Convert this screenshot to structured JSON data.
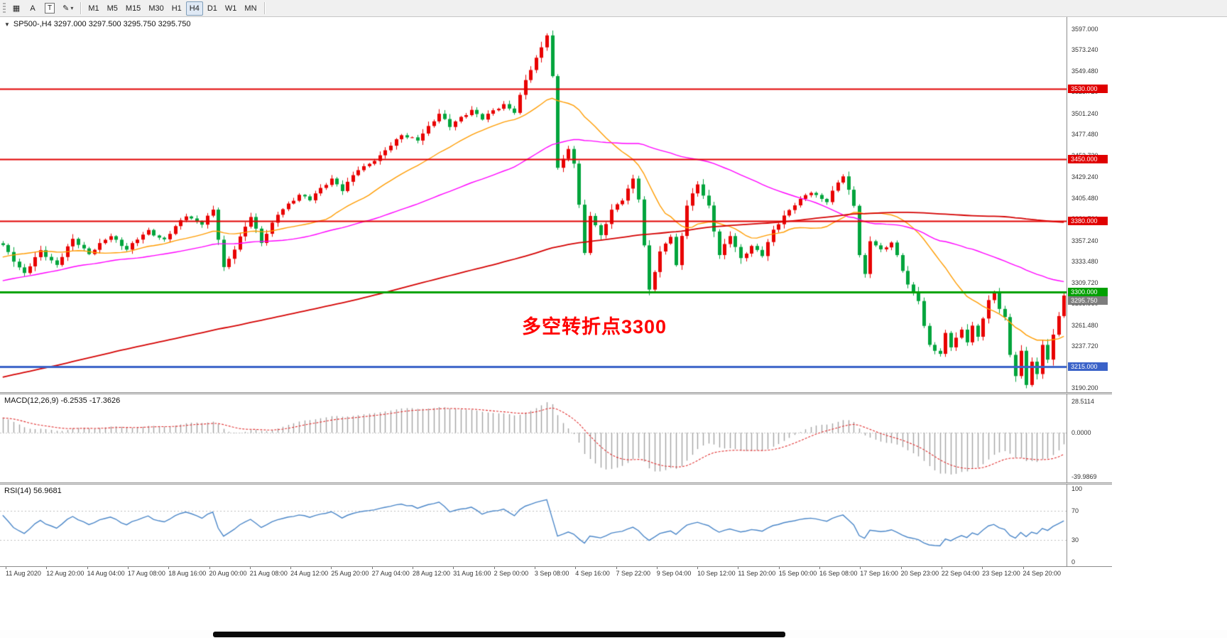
{
  "toolbar": {
    "tools": [
      {
        "name": "chart-grid-icon",
        "glyph": "▦"
      },
      {
        "name": "annotation-text-tool",
        "glyph": "A"
      },
      {
        "name": "text-label-tool",
        "glyph": "T",
        "boxed": true
      },
      {
        "name": "draw-pencil-tool",
        "glyph": "✎",
        "chevron": true
      }
    ],
    "timeframes": [
      {
        "label": "M1",
        "active": false
      },
      {
        "label": "M5",
        "active": false
      },
      {
        "label": "M15",
        "active": false
      },
      {
        "label": "M30",
        "active": false
      },
      {
        "label": "H1",
        "active": false
      },
      {
        "label": "H4",
        "active": true
      },
      {
        "label": "D1",
        "active": false
      },
      {
        "label": "W1",
        "active": false
      },
      {
        "label": "MN",
        "active": false
      }
    ]
  },
  "chart": {
    "symbol_header": "SP500-,H4  3297.000 3297.500 3295.750 3295.750",
    "annotation": {
      "text": "多空转折点3300",
      "color": "#ff0000"
    },
    "price_axis": {
      "ticks": [
        "3597.000",
        "3573.240",
        "3549.480",
        "3525.720",
        "3501.240",
        "3477.480",
        "3453.720",
        "3429.240",
        "3405.480",
        "3381.720",
        "3357.240",
        "3333.480",
        "3309.720",
        "3285.960",
        "3261.480",
        "3237.720",
        "3213.960",
        "3190.200"
      ]
    },
    "hlines": [
      {
        "value": 3530,
        "label": "3530.000",
        "color": "#e00000",
        "width": 2
      },
      {
        "value": 3450,
        "label": "3450.000",
        "color": "#e00000",
        "width": 2
      },
      {
        "value": 3380,
        "label": "3380.000",
        "color": "#e00000",
        "width": 2
      },
      {
        "value": 3300,
        "label": "3300.000",
        "color": "#00a000",
        "width": 3
      },
      {
        "value": 3215,
        "label": "3215.000",
        "color": "#3a62c8",
        "width": 3
      }
    ],
    "current_price": {
      "label": "3295.750",
      "value": 3295.75,
      "color": "#7d7d7d"
    },
    "time_axis": [
      "11 Aug 2020",
      "12 Aug 20:00",
      "14 Aug 04:00",
      "17 Aug 08:00",
      "18 Aug 16:00",
      "20 Aug 00:00",
      "21 Aug 08:00",
      "24 Aug 12:00",
      "25 Aug 20:00",
      "27 Aug 04:00",
      "28 Aug 12:00",
      "31 Aug 16:00",
      "2 Sep 00:00",
      "3 Sep 08:00",
      "4 Sep 16:00",
      "7 Sep 22:00",
      "9 Sep 04:00",
      "10 Sep 12:00",
      "11 Sep 20:00",
      "15 Sep 00:00",
      "16 Sep 08:00",
      "17 Sep 16:00",
      "20 Sep 23:00",
      "22 Sep 04:00",
      "23 Sep 12:00",
      "24 Sep 20:00"
    ]
  },
  "macd_panel": {
    "label": "MACD(12,26,9) -6.2535 -17.3626",
    "axis": [
      {
        "label": "28.5114",
        "value": 28.5114
      },
      {
        "label": "0.0000",
        "value": 0
      },
      {
        "label": "-39.9869",
        "value": -39.9869
      }
    ]
  },
  "rsi_panel": {
    "label": "RSI(14) 56.9681",
    "axis": [
      {
        "label": "100",
        "value": 100
      },
      {
        "label": "70",
        "value": 70
      },
      {
        "label": "30",
        "value": 30
      },
      {
        "label": "0",
        "value": 0
      }
    ],
    "levels": [
      70,
      30
    ]
  },
  "chart_data": {
    "type": "candlestick",
    "symbol": "SP500-",
    "timeframe": "H4",
    "current_bar": {
      "open": 3297.0,
      "high": 3297.5,
      "low": 3295.75,
      "close": 3295.75
    },
    "bars": 198,
    "price_range": [
      3190.2,
      3597.0
    ],
    "time_range": [
      "11 Aug 2020 00:00",
      "24 Sep 2020 20:00"
    ],
    "horizontal_levels": [
      3530,
      3450,
      3380,
      3300,
      3215
    ],
    "anchors": [
      [
        0,
        3352
      ],
      [
        2,
        3336
      ],
      [
        4,
        3321
      ],
      [
        7,
        3346
      ],
      [
        10,
        3331
      ],
      [
        13,
        3359
      ],
      [
        16,
        3344
      ],
      [
        20,
        3363
      ],
      [
        23,
        3349
      ],
      [
        27,
        3369
      ],
      [
        30,
        3359
      ],
      [
        34,
        3387
      ],
      [
        37,
        3377
      ],
      [
        39,
        3392
      ],
      [
        41,
        3328
      ],
      [
        43,
        3349
      ],
      [
        46,
        3385
      ],
      [
        48,
        3357
      ],
      [
        51,
        3387
      ],
      [
        55,
        3411
      ],
      [
        57,
        3404
      ],
      [
        61,
        3429
      ],
      [
        63,
        3415
      ],
      [
        66,
        3439
      ],
      [
        70,
        3453
      ],
      [
        74,
        3479
      ],
      [
        77,
        3471
      ],
      [
        81,
        3503
      ],
      [
        83,
        3487
      ],
      [
        87,
        3507
      ],
      [
        89,
        3496
      ],
      [
        93,
        3513
      ],
      [
        95,
        3504
      ],
      [
        97,
        3539
      ],
      [
        99,
        3565
      ],
      [
        101,
        3592
      ],
      [
        102,
        3543
      ],
      [
        103,
        3440
      ],
      [
        105,
        3461
      ],
      [
        106,
        3447
      ],
      [
        107,
        3400
      ],
      [
        108,
        3343
      ],
      [
        109,
        3386
      ],
      [
        111,
        3363
      ],
      [
        113,
        3394
      ],
      [
        115,
        3404
      ],
      [
        117,
        3427
      ],
      [
        118,
        3406
      ],
      [
        119,
        3353
      ],
      [
        120,
        3303
      ],
      [
        122,
        3344
      ],
      [
        124,
        3363
      ],
      [
        125,
        3330
      ],
      [
        127,
        3399
      ],
      [
        129,
        3421
      ],
      [
        131,
        3397
      ],
      [
        133,
        3343
      ],
      [
        135,
        3363
      ],
      [
        137,
        3337
      ],
      [
        139,
        3353
      ],
      [
        141,
        3341
      ],
      [
        143,
        3369
      ],
      [
        145,
        3387
      ],
      [
        147,
        3399
      ],
      [
        150,
        3413
      ],
      [
        153,
        3403
      ],
      [
        155,
        3423
      ],
      [
        156,
        3431
      ],
      [
        158,
        3399
      ],
      [
        159,
        3343
      ],
      [
        160,
        3319
      ],
      [
        161,
        3357
      ],
      [
        163,
        3347
      ],
      [
        165,
        3357
      ],
      [
        166,
        3341
      ],
      [
        168,
        3307
      ],
      [
        170,
        3291
      ],
      [
        171,
        3262
      ],
      [
        172,
        3240
      ],
      [
        174,
        3228
      ],
      [
        175,
        3252
      ],
      [
        176,
        3238
      ],
      [
        178,
        3258
      ],
      [
        179,
        3244
      ],
      [
        180,
        3260
      ],
      [
        181,
        3248
      ],
      [
        182,
        3270
      ],
      [
        183,
        3290
      ],
      [
        184,
        3300
      ],
      [
        185,
        3282
      ],
      [
        186,
        3270
      ],
      [
        187,
        3228
      ],
      [
        188,
        3204
      ],
      [
        189,
        3232
      ],
      [
        190,
        3196
      ],
      [
        191,
        3222
      ],
      [
        192,
        3206
      ],
      [
        193,
        3240
      ],
      [
        194,
        3222
      ],
      [
        195,
        3250
      ],
      [
        196,
        3274
      ],
      [
        197,
        3295.75
      ]
    ],
    "colors": {
      "bull": "#e80000",
      "bear": "#00a43c",
      "histogram": "#a3a3a3",
      "macd_signal": "#e03030",
      "rsi_line": "#4a86c8",
      "levels": "#bdbdbd"
    },
    "moving_averages": [
      {
        "period": 21,
        "color": "#ff9c00",
        "width": 1.4
      },
      {
        "period": 55,
        "color": "#ff00ff",
        "width": 1.4
      },
      {
        "period": 200,
        "color": "#d40000",
        "width": 1.8
      }
    ],
    "indicators": {
      "macd": {
        "fast": 12,
        "slow": 26,
        "signal": 9,
        "value": -6.2535,
        "signal_value": -17.3626
      },
      "rsi": {
        "period": 14,
        "value": 56.9681
      }
    }
  }
}
